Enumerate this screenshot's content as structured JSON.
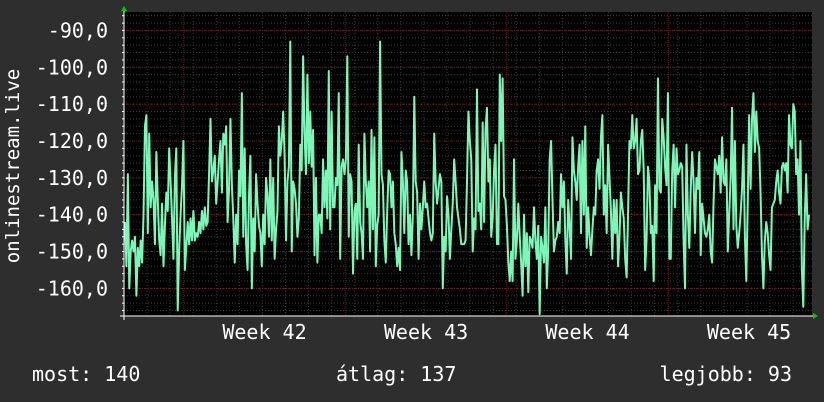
{
  "chart_data": {
    "type": "line",
    "ylabel": "onlinestream.live",
    "ylim": [
      -167.5,
      -85
    ],
    "y_ticks": [
      "-90,0",
      "-100,0",
      "-110,0",
      "-120,0",
      "-130,0",
      "-140,0",
      "-150,0",
      "-160,0"
    ],
    "y_tick_values": [
      -90,
      -100,
      -110,
      -120,
      -130,
      -140,
      -150,
      -160
    ],
    "x_ticks": [
      "Week 42",
      "Week 43",
      "Week 44",
      "Week 45"
    ],
    "x_tick_positions": [
      1,
      2,
      3,
      4
    ],
    "xlim": [
      0.63,
      4.89
    ],
    "grid": true,
    "colors": {
      "background": "#2e2e2e",
      "plot_bg": "#000000",
      "grid_minor": "#3a3a3a",
      "grid_major": "#5a2020",
      "line": "#7cf7b8",
      "axis": "#ffffff",
      "arrow": "#00cc00"
    },
    "series": [
      {
        "values": [
          -142,
          -154,
          -129,
          -160,
          -150,
          -147,
          -150,
          -146,
          -162,
          -149,
          -154,
          -147,
          -153,
          -140,
          -116,
          -113,
          -145,
          -118,
          -138,
          -131,
          -136,
          -148,
          -123,
          -136,
          -147,
          -151,
          -137,
          -154,
          -143,
          -134,
          -139,
          -122,
          -131,
          -141,
          -152,
          -130,
          -122,
          -166,
          -150,
          -140,
          -132,
          -120,
          -155,
          -149,
          -142,
          -148,
          -141,
          -147,
          -139,
          -147,
          -145,
          -146,
          -142,
          -145,
          -139,
          -144,
          -138,
          -143,
          -142,
          -129,
          -114,
          -131,
          -128,
          -124,
          -137,
          -131,
          -125,
          -120,
          -134,
          -118,
          -121,
          -116,
          -142,
          -133,
          -114,
          -132,
          -141,
          -153,
          -140,
          -148,
          -128,
          -135,
          -107,
          -146,
          -122,
          -148,
          -155,
          -135,
          -124,
          -160,
          -141,
          -150,
          -129,
          -137,
          -143,
          -145,
          -154,
          -140,
          -148,
          -130,
          -135,
          -146,
          -125,
          -147,
          -130,
          -152,
          -144,
          -139,
          -116,
          -124,
          -120,
          -112,
          -124,
          -147,
          -131,
          -127,
          -93,
          -150,
          -131,
          -133,
          -137,
          -146,
          -141,
          -121,
          -128,
          -97,
          -118,
          -129,
          -102,
          -126,
          -112,
          -127,
          -117,
          -151,
          -130,
          -153,
          -140,
          -140,
          -145,
          -125,
          -138,
          -128,
          -141,
          -101,
          -144,
          -112,
          -138,
          -138,
          -130,
          -132,
          -107,
          -152,
          -127,
          -125,
          -129,
          -125,
          -97,
          -146,
          -129,
          -131,
          -156,
          -139,
          -137,
          -152,
          -121,
          -142,
          -145,
          -152,
          -118,
          -131,
          -138,
          -131,
          -150,
          -117,
          -144,
          -119,
          -154,
          -143,
          -140,
          -93,
          -129,
          -132,
          -147,
          -153,
          -139,
          -128,
          -129,
          -138,
          -131,
          -145,
          -148,
          -154,
          -149,
          -155,
          -123,
          -131,
          -145,
          -128,
          -131,
          -148,
          -140,
          -151,
          -140,
          -108,
          -131,
          -134,
          -152,
          -137,
          -144,
          -138,
          -131,
          -138,
          -137,
          -141,
          -145,
          -147,
          -145,
          -118,
          -131,
          -137,
          -133,
          -129,
          -131,
          -160,
          -146,
          -150,
          -135,
          -140,
          -152,
          -144,
          -137,
          -125,
          -131,
          -138,
          -141,
          -144,
          -148,
          -148,
          -148,
          -147,
          -131,
          -112,
          -120,
          -125,
          -150,
          -141,
          -144,
          -106,
          -139,
          -137,
          -144,
          -115,
          -142,
          -117,
          -111,
          -131,
          -125,
          -146,
          -141,
          -128,
          -121,
          -148,
          -148,
          -102,
          -120,
          -103,
          -135,
          -136,
          -143,
          -153,
          -158,
          -150,
          -158,
          -125,
          -152,
          -147,
          -137,
          -146,
          -153,
          -162,
          -140,
          -154,
          -145,
          -161,
          -146,
          -147,
          -149,
          -138,
          -147,
          -152,
          -143,
          -167,
          -146,
          -149,
          -153,
          -138,
          -160,
          -149,
          -125,
          -120,
          -136,
          -150,
          -147,
          -146,
          -142,
          -145,
          -129,
          -138,
          -131,
          -147,
          -156,
          -136,
          -143,
          -152,
          -119,
          -128,
          -131,
          -136,
          -127,
          -121,
          -145,
          -120,
          -140,
          -116,
          -149,
          -138,
          -146,
          -151,
          -144,
          -138,
          -140,
          -128,
          -125,
          -133,
          -119,
          -113,
          -140,
          -132,
          -145,
          -121,
          -130,
          -139,
          -152,
          -136,
          -145,
          -136,
          -154,
          -146,
          -134,
          -138,
          -141,
          -152,
          -157,
          -140,
          -120,
          -122,
          -113,
          -122,
          -120,
          -114,
          -129,
          -128,
          -120,
          -117,
          -128,
          -155,
          -147,
          -127,
          -131,
          -145,
          -143,
          -158,
          -132,
          -145,
          -103,
          -133,
          -134,
          -114,
          -119,
          -127,
          -132,
          -107,
          -152,
          -152,
          -128,
          -121,
          -138,
          -122,
          -129,
          -128,
          -126,
          -127,
          -147,
          -160,
          -121,
          -140,
          -149,
          -133,
          -123,
          -131,
          -145,
          -130,
          -133,
          -123,
          -151,
          -137,
          -141,
          -145,
          -146,
          -144,
          -140,
          -150,
          -153,
          -137,
          -125,
          -127,
          -129,
          -124,
          -134,
          -119,
          -131,
          -132,
          -125,
          -150,
          -140,
          -130,
          -111,
          -144,
          -120,
          -143,
          -149,
          -145,
          -140,
          -133,
          -121,
          -146,
          -158,
          -137,
          -113,
          -133,
          -114,
          -107,
          -123,
          -112,
          -120,
          -122,
          -134,
          -151,
          -160,
          -147,
          -142,
          -145,
          -151,
          -155,
          -138,
          -137,
          -136,
          -131,
          -128,
          -134,
          -137,
          -127,
          -126,
          -128,
          -126,
          -134,
          -113,
          -121,
          -122,
          -110,
          -112,
          -129,
          -125,
          -140,
          -120,
          -155,
          -165,
          -141,
          -129,
          -144,
          -140
        ]
      }
    ]
  },
  "stats": {
    "now": "most: 140",
    "avg": "átlag: 137",
    "best": "legjobb: 93"
  }
}
